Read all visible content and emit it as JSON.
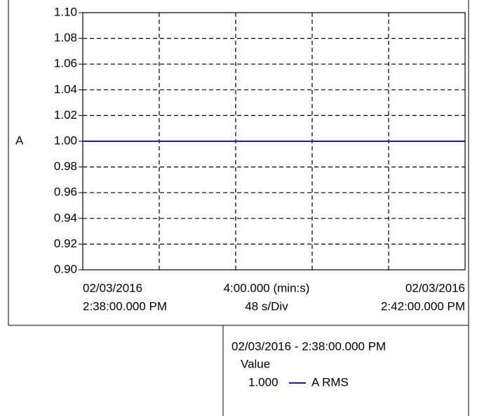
{
  "chart_data": {
    "type": "line",
    "ylabel": "A",
    "ylim": [
      0.9,
      1.1
    ],
    "yticks": [
      {
        "value": 0.9,
        "label": "0.90"
      },
      0.92,
      0.94,
      0.96,
      0.98,
      {
        "value": 1.0,
        "label": "1.00"
      },
      1.02,
      1.04,
      1.06,
      1.08,
      {
        "value": 1.1,
        "label": "1.10"
      }
    ],
    "xlim": [
      0,
      240
    ],
    "xticks": [
      0,
      48,
      96,
      144,
      192,
      240
    ],
    "x": [
      0,
      240
    ],
    "x_start": {
      "date": "02/03/2016",
      "time": "2:38:00.000 PM"
    },
    "x_span": {
      "span": "4:00.000 (min:s)",
      "division": "48 s/Div"
    },
    "x_end": {
      "date": "02/03/2016",
      "time": "2:42:00.000 PM"
    },
    "grid": true,
    "series": [
      {
        "name": "A RMS",
        "color": "#1a1ab8",
        "values": [
          1.0,
          1.0
        ]
      }
    ],
    "readout": {
      "time": "02/03/2016 - 2:38:00.000 PM",
      "header": "Value",
      "value": 1.0,
      "value_label": "1.000"
    }
  }
}
